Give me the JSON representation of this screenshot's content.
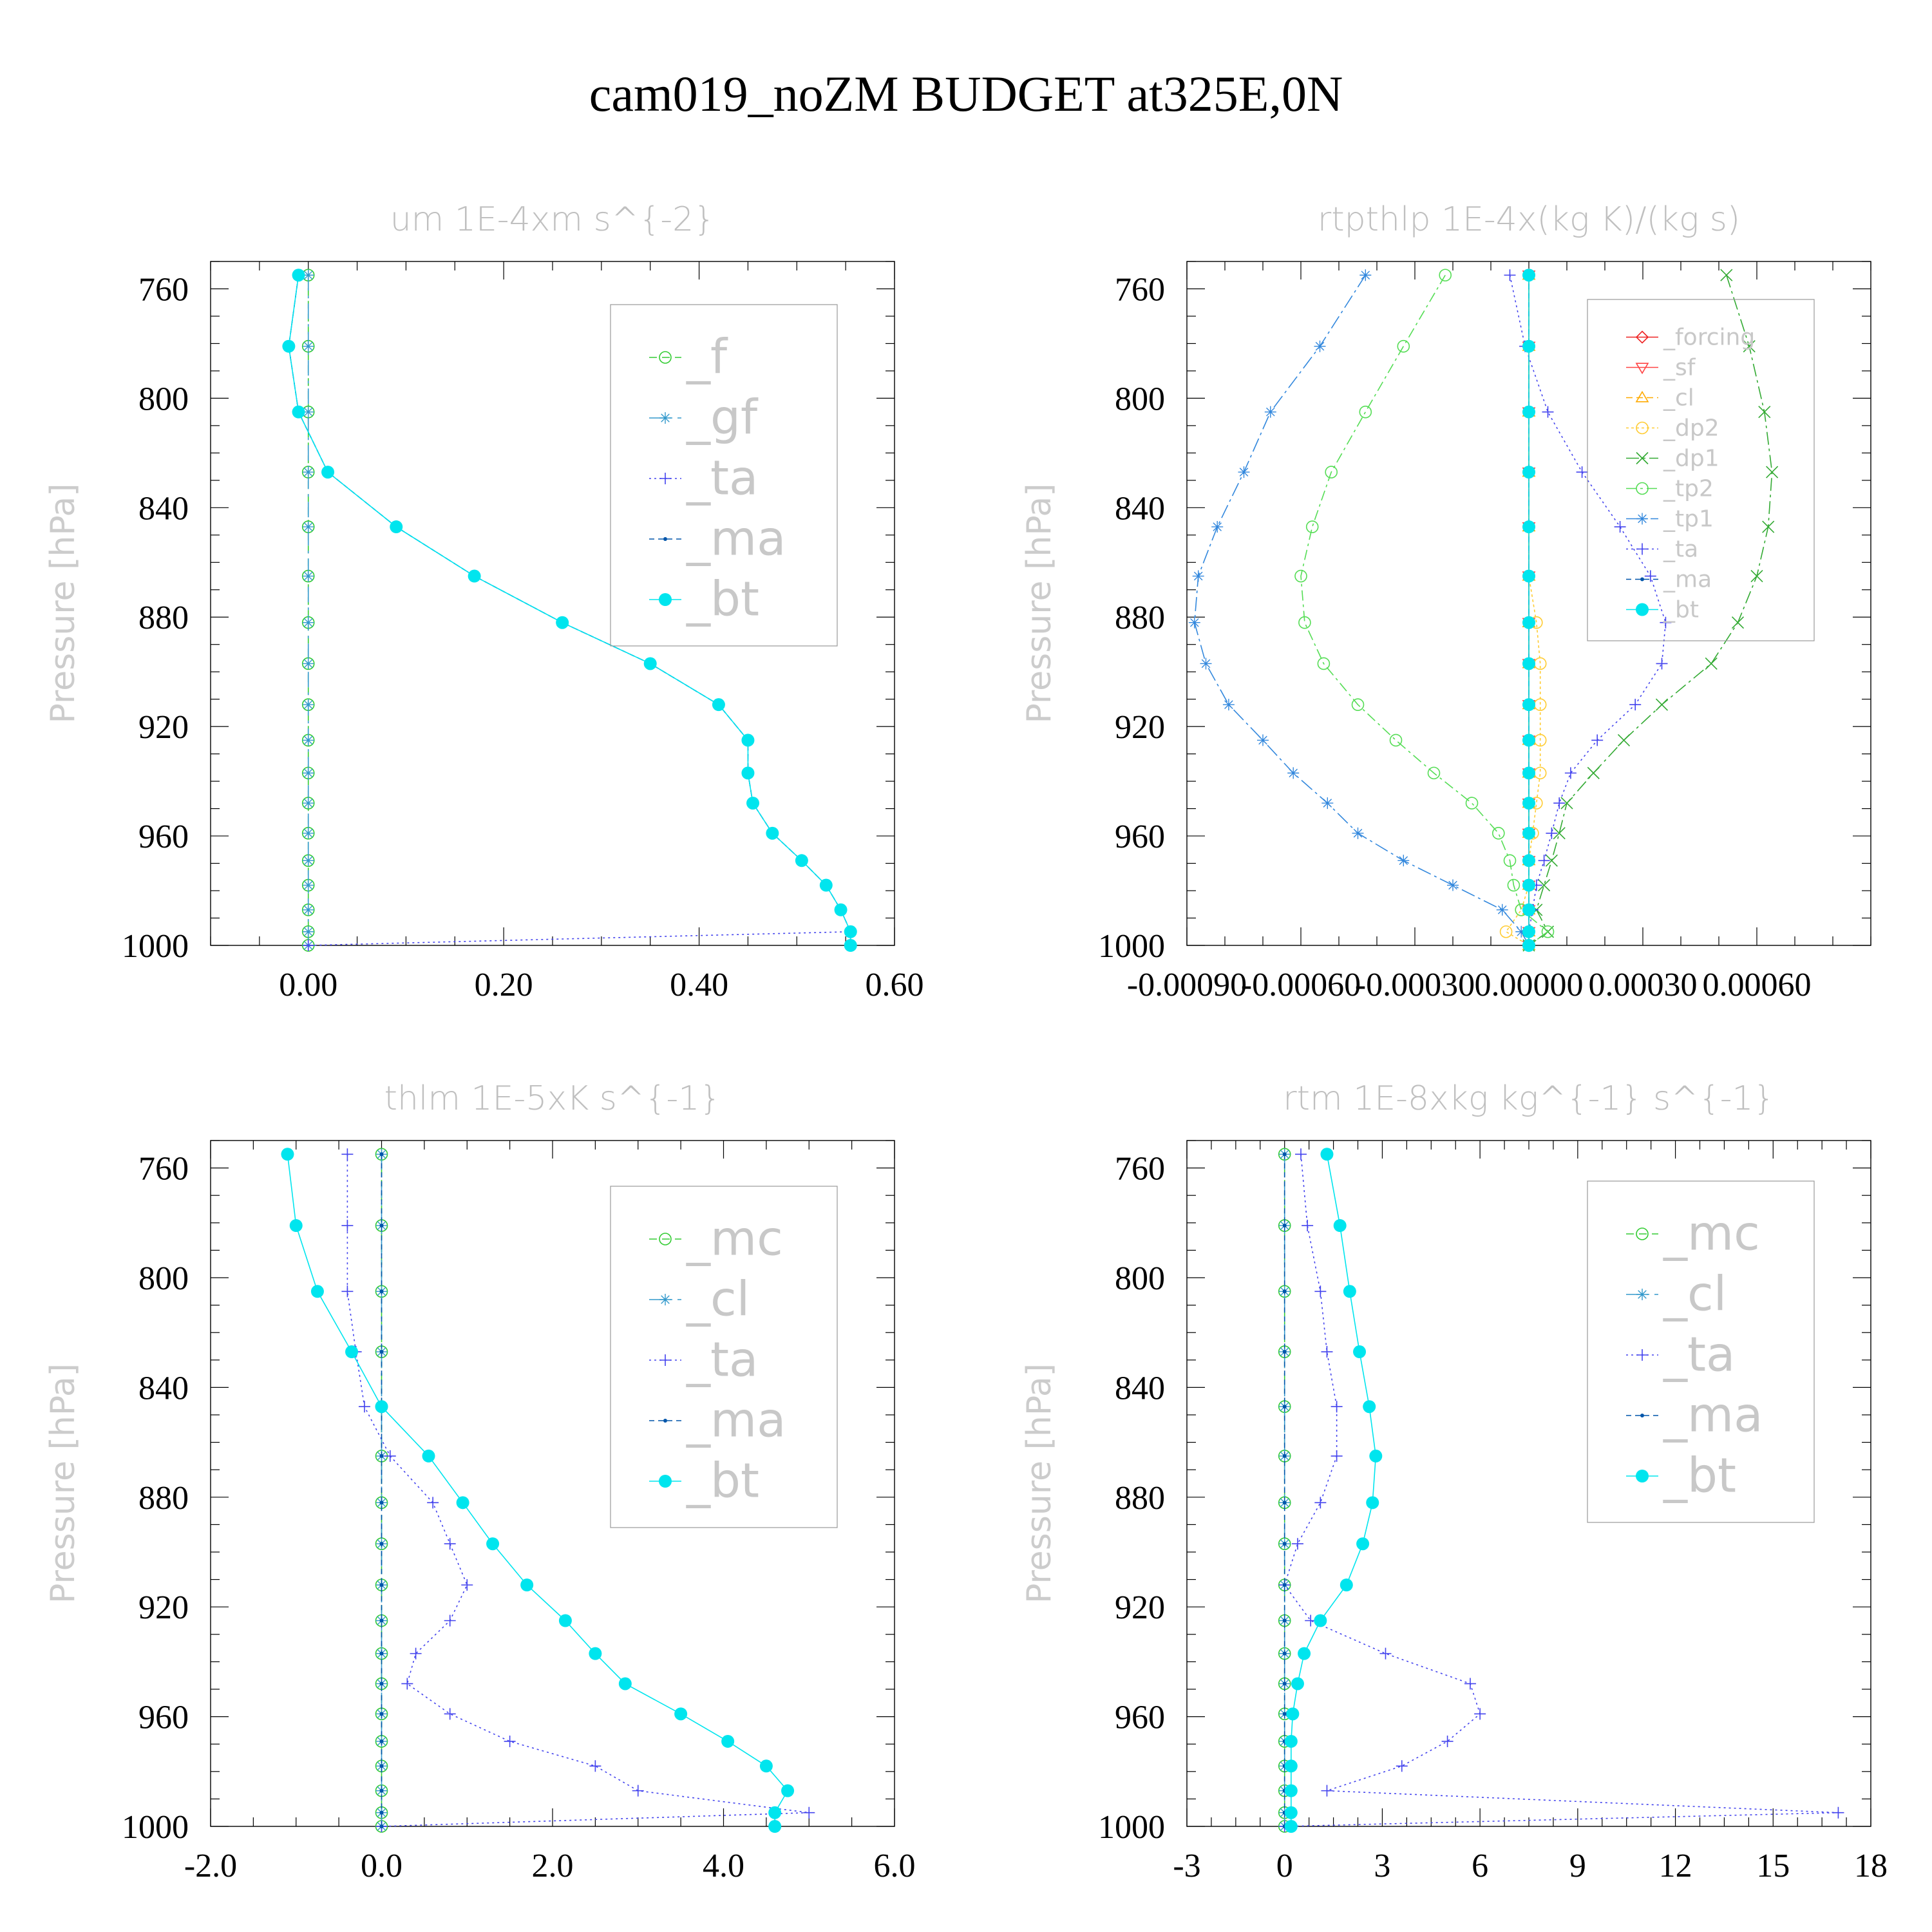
{
  "figure": {
    "title": "cam019_noZM  BUDGET at325E,0N",
    "ylabel": "Pressure [hPa]"
  },
  "chart_data": [
    {
      "type": "line",
      "title": "um  1E-4xm s^{-2}",
      "ylabel": "Pressure [hPa]",
      "xlim": [
        -0.1,
        0.6
      ],
      "xticks": [
        0.0,
        0.2,
        0.4,
        0.6
      ],
      "xtick_labels": [
        "0.00",
        "0.20",
        "0.40",
        "0.60"
      ],
      "ylim": [
        750,
        1000
      ],
      "yticks": [
        760,
        800,
        840,
        880,
        920,
        960,
        1000
      ],
      "legend_font": 74,
      "levels": [
        755,
        781,
        805,
        827,
        847,
        865,
        882,
        897,
        912,
        925,
        937,
        948,
        959,
        969,
        978,
        987,
        995,
        1000
      ],
      "series": [
        {
          "name": "_f",
          "color": "#33cc33",
          "dash": "12,8",
          "marker": "circle-open",
          "values": [
            0,
            0,
            0,
            0,
            0,
            0,
            0,
            0,
            0,
            0,
            0,
            0,
            0,
            0,
            0,
            0,
            0,
            0
          ]
        },
        {
          "name": "_gf",
          "color": "#3399cc",
          "dash": "24,8,4,8",
          "marker": "asterisk",
          "values": [
            0,
            0,
            0,
            0,
            0,
            0,
            0,
            0,
            0,
            0,
            0,
            0,
            0,
            0,
            0,
            0,
            0,
            0
          ]
        },
        {
          "name": "_ta",
          "color": "#4444ee",
          "dash": "3,5",
          "marker": "plus",
          "values": [
            -0.01,
            -0.02,
            -0.01,
            0.02,
            0.09,
            0.17,
            0.26,
            0.35,
            0.42,
            0.45,
            0.45,
            0.455,
            0.475,
            0.505,
            0.53,
            0.545,
            0.555,
            0.0
          ]
        },
        {
          "name": "_ma",
          "color": "#0055aa",
          "dash": "8,6",
          "marker": "dot",
          "values": [
            -0.01,
            -0.02,
            -0.01,
            0.02,
            0.09,
            0.17,
            0.26,
            0.35,
            0.42,
            0.45,
            0.45,
            0.455,
            0.475,
            0.505,
            0.53,
            0.545,
            0.555,
            0.555
          ]
        },
        {
          "name": "_bt",
          "color": "#00e5ee",
          "dash": "",
          "marker": "filled",
          "values": [
            -0.01,
            -0.02,
            -0.01,
            0.02,
            0.09,
            0.17,
            0.26,
            0.35,
            0.42,
            0.45,
            0.45,
            0.455,
            0.475,
            0.505,
            0.53,
            0.545,
            0.555,
            0.555
          ]
        }
      ]
    },
    {
      "type": "line",
      "title": "rtpthlp  1E-4x(kg K)/(kg s)",
      "ylabel": "Pressure [hPa]",
      "xlim": [
        -0.0009,
        0.0009
      ],
      "xticks": [
        -0.0009,
        -0.0006,
        -0.0003,
        0.0,
        0.0003,
        0.0006
      ],
      "xtick_labels": [
        "-0.00090",
        "-0.00060",
        "-0.00030",
        "0.00000",
        "0.00030",
        "0.00060"
      ],
      "ylim": [
        750,
        1000
      ],
      "yticks": [
        760,
        800,
        840,
        880,
        920,
        960,
        1000
      ],
      "legend_font": 36,
      "levels": [
        755,
        781,
        805,
        827,
        847,
        865,
        882,
        897,
        912,
        925,
        937,
        948,
        959,
        969,
        978,
        987,
        995,
        1000
      ],
      "series": [
        {
          "name": "_forcing",
          "color": "#ee2222",
          "dash": "",
          "marker": "diamond",
          "values": [
            0,
            0,
            0,
            0,
            0,
            0,
            0,
            0,
            0,
            0,
            0,
            0,
            0,
            0,
            0,
            0,
            0,
            0
          ]
        },
        {
          "name": "_sf",
          "color": "#ff4444",
          "dash": "",
          "marker": "tri-down",
          "values": [
            0,
            0,
            0,
            0,
            0,
            0,
            0,
            0,
            0,
            0,
            0,
            0,
            0,
            0,
            0,
            0,
            0,
            0
          ]
        },
        {
          "name": "_cl",
          "color": "#ffaa00",
          "dash": "10,6",
          "marker": "tri-up",
          "values": [
            0,
            0,
            0,
            0,
            0,
            0,
            0,
            0,
            0,
            0,
            0,
            0,
            0,
            0,
            0,
            0,
            0,
            0
          ]
        },
        {
          "name": "_dp2",
          "color": "#ffcc33",
          "dash": "4,4",
          "marker": "circle-open",
          "values": [
            0,
            0,
            0,
            0,
            0,
            0,
            2e-05,
            3e-05,
            3e-05,
            3e-05,
            3e-05,
            2e-05,
            1e-05,
            0,
            0,
            -2e-05,
            -6e-05,
            0
          ]
        },
        {
          "name": "_dp1",
          "color": "#33aa33",
          "dash": "20,6,4,6",
          "marker": "x",
          "values": [
            0.00052,
            0.00058,
            0.00062,
            0.00064,
            0.00063,
            0.0006,
            0.00055,
            0.00048,
            0.00035,
            0.00025,
            0.00017,
            0.0001,
            8e-05,
            6e-05,
            4e-05,
            2e-05,
            5e-05,
            0
          ]
        },
        {
          "name": "_tp2",
          "color": "#55dd55",
          "dash": "16,6,4,6",
          "marker": "circle-open",
          "values": [
            -0.00022,
            -0.00033,
            -0.00043,
            -0.00052,
            -0.00057,
            -0.0006,
            -0.00059,
            -0.00054,
            -0.00045,
            -0.00035,
            -0.00025,
            -0.00015,
            -8e-05,
            -5e-05,
            -4e-05,
            -2e-05,
            5e-05,
            0
          ]
        },
        {
          "name": "_tp1",
          "color": "#3388dd",
          "dash": "22,6,4,6",
          "marker": "asterisk",
          "values": [
            -0.00043,
            -0.00055,
            -0.00068,
            -0.00075,
            -0.00082,
            -0.00087,
            -0.00088,
            -0.00085,
            -0.00079,
            -0.0007,
            -0.00062,
            -0.00053,
            -0.00045,
            -0.00033,
            -0.0002,
            -7e-05,
            -2e-05,
            0
          ]
        },
        {
          "name": "_ta",
          "color": "#4444ee",
          "dash": "3,5",
          "marker": "plus",
          "values": [
            -5e-05,
            -1e-05,
            5e-05,
            0.00014,
            0.00024,
            0.00032,
            0.00036,
            0.00035,
            0.00028,
            0.00018,
            0.00011,
            8e-05,
            6e-05,
            4e-05,
            2e-05,
            1e-05,
            0,
            0
          ]
        },
        {
          "name": "_ma",
          "color": "#0055aa",
          "dash": "8,6",
          "marker": "dot",
          "values": [
            0,
            0,
            0,
            0,
            0,
            0,
            0,
            0,
            0,
            0,
            0,
            0,
            0,
            0,
            0,
            0,
            0,
            0
          ]
        },
        {
          "name": "_bt",
          "color": "#00e5ee",
          "dash": "",
          "marker": "filled",
          "values": [
            0,
            0,
            0,
            0,
            0,
            0,
            0,
            0,
            0,
            0,
            0,
            0,
            0,
            0,
            0,
            0,
            0,
            0
          ]
        }
      ]
    },
    {
      "type": "line",
      "title": "thlm  1E-5xK s^{-1}",
      "ylabel": "Pressure [hPa]",
      "xlim": [
        -2.0,
        6.0
      ],
      "xticks": [
        -2.0,
        0.0,
        2.0,
        4.0,
        6.0
      ],
      "xtick_labels": [
        "-2.0",
        "0.0",
        "2.0",
        "4.0",
        "6.0"
      ],
      "ylim": [
        750,
        1000
      ],
      "yticks": [
        760,
        800,
        840,
        880,
        920,
        960,
        1000
      ],
      "legend_font": 74,
      "levels": [
        755,
        781,
        805,
        827,
        847,
        865,
        882,
        897,
        912,
        925,
        937,
        948,
        959,
        969,
        978,
        987,
        995,
        1000
      ],
      "series": [
        {
          "name": "_mc",
          "color": "#33cc33",
          "dash": "12,8",
          "marker": "circle-open",
          "values": [
            0,
            0,
            0,
            0,
            0,
            0,
            0,
            0,
            0,
            0,
            0,
            0,
            0,
            0,
            0,
            0,
            0,
            0
          ]
        },
        {
          "name": "_cl",
          "color": "#3399cc",
          "dash": "24,8,4,8",
          "marker": "asterisk",
          "values": [
            0,
            0,
            0,
            0,
            0,
            0,
            0,
            0,
            0,
            0,
            0,
            0,
            0,
            0,
            0,
            0,
            0,
            0
          ]
        },
        {
          "name": "_ta",
          "color": "#4444ee",
          "dash": "3,5",
          "marker": "plus",
          "values": [
            -0.4,
            -0.4,
            -0.4,
            -0.3,
            -0.2,
            0.1,
            0.6,
            0.8,
            1.0,
            0.8,
            0.4,
            0.3,
            0.8,
            1.5,
            2.5,
            3.0,
            5.0,
            0.0
          ]
        },
        {
          "name": "_ma",
          "color": "#0055aa",
          "dash": "8,6",
          "marker": "dot",
          "values": [
            0,
            0,
            0,
            0,
            0,
            0,
            0,
            0,
            0,
            0,
            0,
            0,
            0,
            0,
            0,
            0,
            0,
            0
          ]
        },
        {
          "name": "_bt",
          "color": "#00e5ee",
          "dash": "",
          "marker": "filled",
          "values": [
            -1.1,
            -1.0,
            -0.75,
            -0.35,
            0.0,
            0.55,
            0.95,
            1.3,
            1.7,
            2.15,
            2.5,
            2.85,
            3.5,
            4.05,
            4.5,
            4.75,
            4.6,
            4.6
          ]
        }
      ]
    },
    {
      "type": "line",
      "title": "rtm  1E-8xkg kg^{-1} s^{-1}",
      "ylabel": "Pressure [hPa]",
      "xlim": [
        -3,
        18
      ],
      "xticks": [
        -3,
        0,
        3,
        6,
        9,
        12,
        15,
        18
      ],
      "xtick_labels": [
        "-3",
        "0",
        "3",
        "6",
        "9",
        "12",
        "15",
        "18"
      ],
      "ylim": [
        750,
        1000
      ],
      "yticks": [
        760,
        800,
        840,
        880,
        920,
        960,
        1000
      ],
      "legend_font": 74,
      "levels": [
        755,
        781,
        805,
        827,
        847,
        865,
        882,
        897,
        912,
        925,
        937,
        948,
        959,
        969,
        978,
        987,
        995,
        1000
      ],
      "series": [
        {
          "name": "_mc",
          "color": "#33cc33",
          "dash": "12,8",
          "marker": "circle-open",
          "values": [
            0,
            0,
            0,
            0,
            0,
            0,
            0,
            0,
            0,
            0,
            0,
            0,
            0,
            0,
            0,
            0,
            0,
            0
          ]
        },
        {
          "name": "_cl",
          "color": "#3399cc",
          "dash": "24,8,4,8",
          "marker": "asterisk",
          "values": [
            0,
            0,
            0,
            0,
            0,
            0,
            0,
            0,
            0,
            0,
            0,
            0,
            0,
            0,
            0,
            0,
            0,
            0
          ]
        },
        {
          "name": "_ta",
          "color": "#4444ee",
          "dash": "3,5",
          "marker": "plus",
          "values": [
            0.5,
            0.7,
            1.1,
            1.3,
            1.6,
            1.6,
            1.1,
            0.4,
            0.0,
            0.8,
            3.1,
            5.7,
            6.0,
            5.0,
            3.6,
            1.3,
            17.0,
            0.0
          ]
        },
        {
          "name": "_ma",
          "color": "#0055aa",
          "dash": "8,6",
          "marker": "dot",
          "values": [
            0,
            0,
            0,
            0,
            0,
            0,
            0,
            0,
            0,
            0,
            0,
            0,
            0,
            0,
            0,
            0,
            0,
            0
          ]
        },
        {
          "name": "_bt",
          "color": "#00e5ee",
          "dash": "",
          "marker": "filled",
          "values": [
            1.3,
            1.7,
            2.0,
            2.3,
            2.6,
            2.8,
            2.7,
            2.4,
            1.9,
            1.1,
            0.6,
            0.4,
            0.25,
            0.2,
            0.2,
            0.2,
            0.2,
            0.2
          ]
        }
      ]
    }
  ]
}
